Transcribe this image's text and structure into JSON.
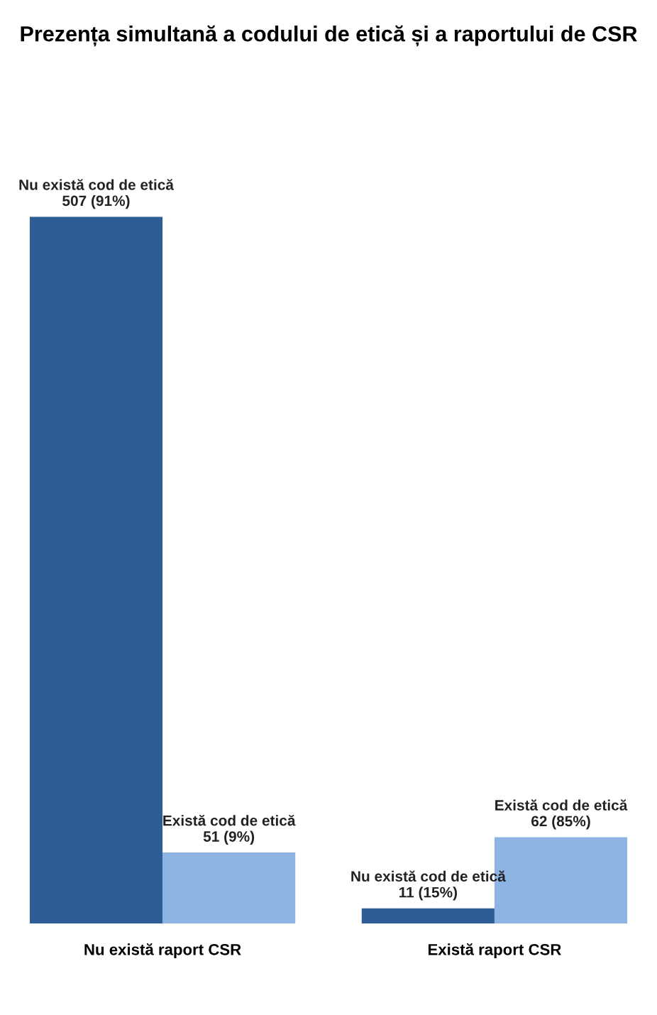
{
  "chart_data": {
    "type": "bar",
    "title": "Prezența simultană a codului de etică și a raportului de CSR",
    "categories": [
      "Nu există raport CSR",
      "Există raport CSR"
    ],
    "series": [
      {
        "name": "Nu există cod de etică",
        "color": "#2e5c94",
        "values": [
          507,
          11
        ],
        "value_labels": [
          "507 (91%)",
          "11 (15%)"
        ]
      },
      {
        "name": "Există cod de etică",
        "color": "#8db4e2",
        "values": [
          51,
          62
        ],
        "value_labels": [
          "51 (9%)",
          "62 (85%)"
        ]
      }
    ],
    "data_labels": true,
    "grid": false,
    "legend": false
  }
}
